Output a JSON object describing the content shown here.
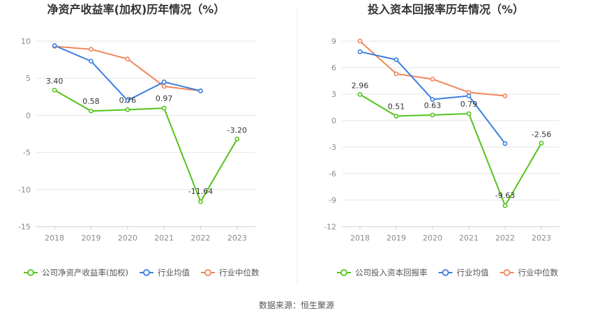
{
  "footer": {
    "source": "数据来源：恒生聚源"
  },
  "colors": {
    "company": "#52c41a",
    "average": "#3a7ee0",
    "median": "#f0865a",
    "grid": "#e6e6e6",
    "axis": "#cccccc"
  },
  "chart_data": [
    {
      "type": "line",
      "title": "净资产收益率(加权)历年情况（%）",
      "categories": [
        "2018",
        "2019",
        "2020",
        "2021",
        "2022",
        "2023"
      ],
      "ylim": [
        -15,
        10
      ],
      "yticks": [
        10,
        5,
        0,
        -5,
        -10,
        -15
      ],
      "grid": true,
      "legend_position": "bottom",
      "series": [
        {
          "name": "公司净资产收益率(加权)",
          "color": "#52c41a",
          "values": [
            3.4,
            0.58,
            0.76,
            0.97,
            -11.64,
            -3.2
          ],
          "labels": [
            "3.40",
            "0.58",
            "0.76",
            "0.97",
            "-11.64",
            "-3.20"
          ]
        },
        {
          "name": "行业均值",
          "color": "#3a7ee0",
          "values": [
            9.4,
            7.3,
            2.0,
            4.5,
            3.3,
            null
          ]
        },
        {
          "name": "行业中位数",
          "color": "#f0865a",
          "values": [
            9.3,
            8.9,
            7.6,
            3.9,
            3.3,
            null
          ]
        }
      ]
    },
    {
      "type": "line",
      "title": "投入资本回报率历年情况（%）",
      "categories": [
        "2018",
        "2019",
        "2020",
        "2021",
        "2022",
        "2023"
      ],
      "ylim": [
        -12,
        9
      ],
      "yticks": [
        9,
        6,
        3,
        0,
        -3,
        -6,
        -9,
        -12
      ],
      "grid": true,
      "legend_position": "bottom",
      "series": [
        {
          "name": "公司投入资本回报率",
          "color": "#52c41a",
          "values": [
            2.96,
            0.51,
            0.63,
            0.79,
            -9.63,
            -2.56
          ],
          "labels": [
            "2.96",
            "0.51",
            "0.63",
            "0.79",
            "-9.63",
            "-2.56"
          ]
        },
        {
          "name": "行业均值",
          "color": "#3a7ee0",
          "values": [
            7.8,
            6.9,
            2.4,
            2.8,
            -2.6,
            null
          ]
        },
        {
          "name": "行业中位数",
          "color": "#f0865a",
          "values": [
            9.0,
            5.3,
            4.7,
            3.2,
            2.8,
            null
          ]
        }
      ]
    }
  ]
}
